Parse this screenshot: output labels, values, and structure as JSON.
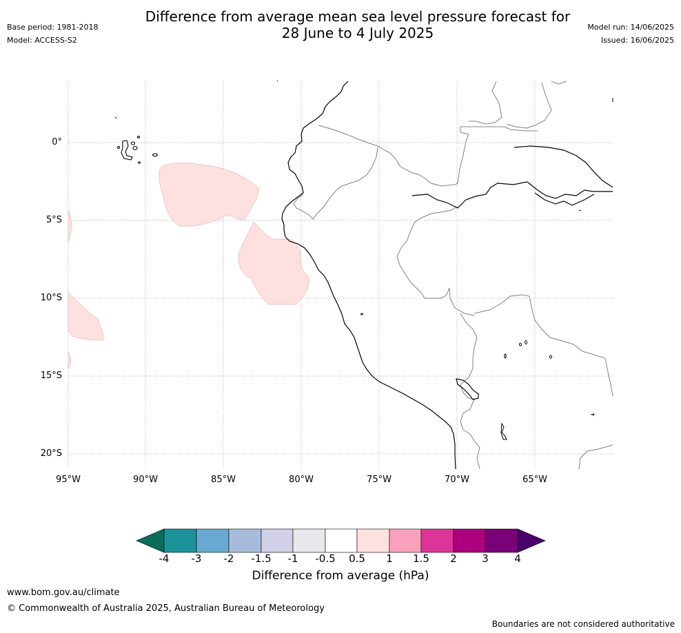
{
  "header": {
    "title_line1": "Difference from average mean sea level pressure forecast for",
    "title_line2": "28 June to 4 July 2025",
    "base_period": "Base period: 1981-2018",
    "model": "Model: ACCESS-S2",
    "model_run": "Model run: 14/06/2025",
    "issued": "Issued: 16/06/2025"
  },
  "map": {
    "lon_labels": [
      "95°W",
      "90°W",
      "85°W",
      "80°W",
      "75°W",
      "70°W",
      "65°W"
    ],
    "lat_labels": [
      "0°",
      "5°S",
      "10°S",
      "15°S",
      "20°S"
    ],
    "colors": {
      "land_outline": "#000000",
      "border": "#808080",
      "grid": "#999999",
      "anomaly_fill": "#fde0df"
    }
  },
  "colorbar": {
    "title": "Difference from average (hPa)",
    "tick_labels": [
      "-4",
      "-3",
      "-2",
      "-1.5",
      "-1",
      "-0.5",
      "0.5",
      "1",
      "1.5",
      "2",
      "3",
      "4"
    ],
    "colors": [
      "#0b6b5c",
      "#1b9399",
      "#67a9d0",
      "#a7bcdc",
      "#d0d1e6",
      "#e8e8ec",
      "#ffffff",
      "#fde0df",
      "#f9a1bc",
      "#dd3497",
      "#ae017e",
      "#7a0177",
      "#49006a"
    ]
  },
  "footer": {
    "url": "www.bom.gov.au/climate",
    "copyright": "© Commonwealth of Australia 2025, Australian Bureau of Meteorology",
    "disclaimer": "Boundaries are not considered authoritative"
  }
}
